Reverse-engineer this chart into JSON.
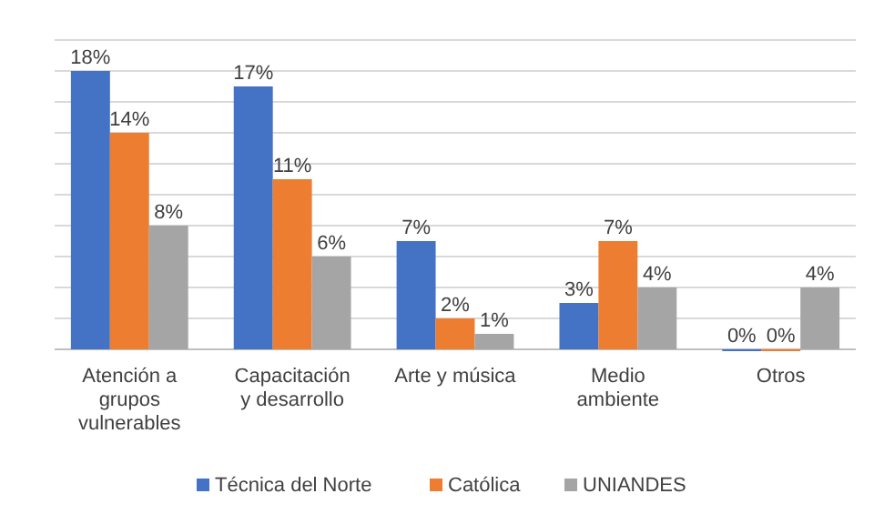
{
  "chart_data": {
    "type": "bar",
    "categories": [
      "Atención a grupos vulnerables",
      "Capacitación y desarrollo",
      "Arte y música",
      "Medio ambiente",
      "Otros"
    ],
    "series": [
      {
        "name": "Técnica del Norte",
        "color": "#4472c4",
        "values": [
          18,
          17,
          7,
          3,
          0
        ],
        "value_labels": [
          "18%",
          "17%",
          "7%",
          "3%",
          "0%"
        ]
      },
      {
        "name": "Católica",
        "color": "#ed7d31",
        "values": [
          14,
          11,
          2,
          7,
          0
        ],
        "value_labels": [
          "14%",
          "11%",
          "2%",
          "7%",
          "0%"
        ]
      },
      {
        "name": "UNIANDES",
        "color": "#a5a5a5",
        "values": [
          8,
          6,
          1,
          4,
          4
        ],
        "value_labels": [
          "8%",
          "6%",
          "1%",
          "4%",
          "4%"
        ]
      }
    ],
    "ylim": [
      0,
      20
    ],
    "yticks": [
      {
        "value": 0,
        "label": null
      },
      {
        "value": 2,
        "label": null
      },
      {
        "value": 4,
        "label": null
      },
      {
        "value": 6,
        "label": null
      },
      {
        "value": 8,
        "label": null
      },
      {
        "value": 10,
        "label": null
      },
      {
        "value": 12,
        "label": null
      },
      {
        "value": 14,
        "label": null
      },
      {
        "value": 16,
        "label": null
      },
      {
        "value": 18,
        "label": null
      },
      {
        "value": 20,
        "label": null
      }
    ],
    "grid": "y",
    "legend": "bottom",
    "tick_labels": "x"
  }
}
